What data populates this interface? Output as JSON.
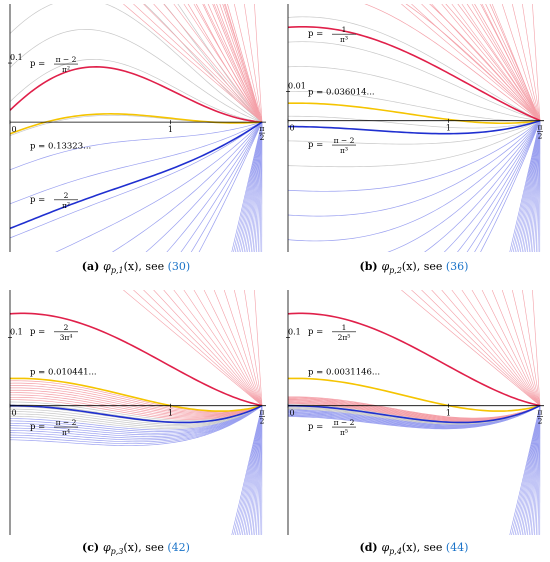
{
  "chart_data": [
    {
      "type": "line",
      "panel": "(a)",
      "caption_func": "φ",
      "caption_sub": "p,1",
      "caption_arg": "(x), see",
      "caption_ref": "(30)",
      "xlim": [
        0,
        1.5708
      ],
      "ylim": [
        -0.22,
        0.2
      ],
      "x_ticks": [
        {
          "value": 0,
          "label": "0"
        },
        {
          "value": 1,
          "label": "1"
        }
      ],
      "x_end_label": {
        "num": "π",
        "den": "2"
      },
      "y_ticks": [
        {
          "value": 0.1,
          "label": "0.1"
        }
      ],
      "family": {
        "n": 1,
        "p_low": -0.6,
        "p_high": 0.9
      },
      "highlighted": [
        {
          "name": "p = (π−2)/π²",
          "color": "#e0204a",
          "role": "red",
          "label_pre": "p =",
          "label_num": "π − 2",
          "label_den": "π²",
          "label_value": 0.1,
          "label_x": 0.0
        },
        {
          "name": "p = 0.13323...",
          "color": "#f5c400",
          "role": "yellow",
          "label_pre": "p = 0.13323...",
          "label_num": "",
          "label_den": "",
          "label_value": -0.04,
          "label_x": 0.0
        },
        {
          "name": "p = 2/π²",
          "color": "#1f2fd0",
          "role": "blue",
          "label_pre": "p =",
          "label_num": "2",
          "label_den": "π²",
          "label_value": -0.13,
          "label_x": 0.0
        }
      ]
    },
    {
      "type": "line",
      "panel": "(b)",
      "caption_func": "φ",
      "caption_sub": "p,2",
      "caption_arg": "(x), see",
      "caption_ref": "(36)",
      "xlim": [
        0,
        1.5708
      ],
      "ylim": [
        -0.045,
        0.04
      ],
      "x_ticks": [
        {
          "value": 0,
          "label": "0"
        },
        {
          "value": 1,
          "label": "1"
        }
      ],
      "x_end_label": {
        "num": "π",
        "den": "2"
      },
      "y_ticks": [
        {
          "value": 0.01,
          "label": "0.01"
        }
      ],
      "family": {
        "n": 2,
        "p_low": -0.1,
        "p_high": 0.12
      },
      "highlighted": [
        {
          "name": "p = 1/π³",
          "color": "#e0204a",
          "role": "red",
          "label_pre": "p =",
          "label_num": "1",
          "label_den": "π³",
          "label_value": 0.03,
          "label_x": 0.0
        },
        {
          "name": "p = 0.036014...",
          "color": "#f5c400",
          "role": "yellow",
          "label_pre": "p = 0.036014...",
          "label_num": "",
          "label_den": "",
          "label_value": 0.01,
          "label_x": 0.0
        },
        {
          "name": "p = (π−2)/π³",
          "color": "#1f2fd0",
          "role": "blue",
          "label_pre": "p =",
          "label_num": "π − 2",
          "label_den": "π³",
          "label_value": -0.008,
          "label_x": 0.0
        }
      ]
    },
    {
      "type": "line",
      "panel": "(c)",
      "caption_func": "φ",
      "caption_sub": "p,3",
      "caption_arg": "(x), see",
      "caption_ref": "(42)",
      "xlim": [
        0,
        1.5708
      ],
      "ylim": [
        -0.19,
        0.17
      ],
      "x_ticks": [
        {
          "value": 0,
          "label": "0"
        },
        {
          "value": 1,
          "label": "1"
        }
      ],
      "x_end_label": {
        "num": "π",
        "den": "2"
      },
      "y_ticks": [
        {
          "value": 0.1,
          "label": "0.1"
        }
      ],
      "family": {
        "n": 3,
        "p_low": -0.05,
        "p_high": 0.04
      },
      "highlighted": [
        {
          "name": "p = 2/(3π⁴)",
          "color": "#e0204a",
          "role": "red",
          "label_pre": "p =",
          "label_num": "2",
          "label_den": "3π⁴",
          "label_value": 0.11,
          "label_x": 0.0
        },
        {
          "name": "p = 0.010441...",
          "color": "#f5c400",
          "role": "yellow",
          "label_pre": "p = 0.010441...",
          "label_num": "",
          "label_den": "",
          "label_value": 0.05,
          "label_x": 0.0
        },
        {
          "name": "p = (π−2)/π⁴",
          "color": "#1f2fd0",
          "role": "blue",
          "label_pre": "p =",
          "label_num": "π − 2",
          "label_den": "π⁴",
          "label_value": -0.03,
          "label_x": 0.0
        }
      ]
    },
    {
      "type": "line",
      "panel": "(d)",
      "caption_func": "φ",
      "caption_sub": "p,4",
      "caption_arg": "(x), see",
      "caption_ref": "(44)",
      "xlim": [
        0,
        1.5708
      ],
      "ylim": [
        -0.19,
        0.17
      ],
      "x_ticks": [
        {
          "value": 0,
          "label": "0"
        },
        {
          "value": 1,
          "label": "1"
        }
      ],
      "x_end_label": {
        "num": "π",
        "den": "2"
      },
      "y_ticks": [
        {
          "value": 0.1,
          "label": "0.1"
        }
      ],
      "family": {
        "n": 4,
        "p_low": -0.016,
        "p_high": 0.013
      },
      "highlighted": [
        {
          "name": "p = 1/(2π⁵)",
          "color": "#e0204a",
          "role": "red",
          "label_pre": "p =",
          "label_num": "1",
          "label_den": "2π⁵",
          "label_value": 0.11,
          "label_x": 0.0
        },
        {
          "name": "p = 0.0031146...",
          "color": "#f5c400",
          "role": "yellow",
          "label_pre": "p = 0.0031146...",
          "label_num": "",
          "label_den": "",
          "label_value": 0.05,
          "label_x": 0.0
        },
        {
          "name": "p = (π−2)/π⁵",
          "color": "#1f2fd0",
          "role": "blue",
          "label_pre": "p =",
          "label_num": "π − 2",
          "label_den": "π⁵",
          "label_value": -0.03,
          "label_x": 0.0
        }
      ]
    }
  ],
  "colors": {
    "grey_curve": "#c8c8c8",
    "red_family": "#f4a0a8",
    "blue_family": "#9aa0f0",
    "ref_link": "#1a73c8"
  }
}
